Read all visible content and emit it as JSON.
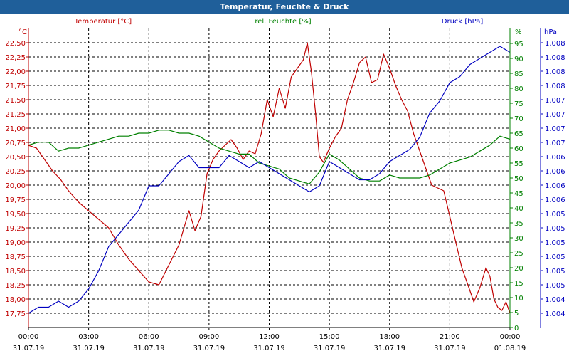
{
  "window": {
    "title": "Temperatur, Feuchte & Druck"
  },
  "colors": {
    "temperature": "#c00000",
    "humidity": "#008000",
    "pressure": "#0000c0",
    "grid": "#000000",
    "titlebar": "#1f5f9a"
  },
  "chart_data": {
    "type": "line",
    "title": "Temperatur, Feuchte & Druck",
    "grid": true,
    "x_ticks": [
      {
        "time": "00:00",
        "date": "31.07.19"
      },
      {
        "time": "03:00",
        "date": "31.07.19"
      },
      {
        "time": "06:00",
        "date": "31.07.19"
      },
      {
        "time": "09:00",
        "date": "31.07.19"
      },
      {
        "time": "12:00",
        "date": "31.07.19"
      },
      {
        "time": "15:00",
        "date": "31.07.19"
      },
      {
        "time": "18:00",
        "date": "31.07.19"
      },
      {
        "time": "21:00",
        "date": "31.07.19"
      },
      {
        "time": "00:00",
        "date": "01.08.19"
      }
    ],
    "x_range_hours": [
      0,
      24
    ],
    "axes": {
      "temperature": {
        "label": "Temperatur [°C]",
        "unit": "°C",
        "range": [
          17.5,
          22.75
        ],
        "ticks": [
          "17,75",
          "18,00",
          "18,25",
          "18,50",
          "18,75",
          "19,00",
          "19,25",
          "19,50",
          "19,75",
          "20,00",
          "20,25",
          "20,50",
          "20,75",
          "21,00",
          "21,25",
          "21,50",
          "21,75",
          "22,00",
          "22,25",
          "22,50"
        ]
      },
      "humidity": {
        "label": "rel. Feuchte [%]",
        "unit": "%",
        "range": [
          0,
          100
        ],
        "ticks": [
          "0",
          "5",
          "10",
          "15",
          "20",
          "25",
          "30",
          "35",
          "40",
          "45",
          "50",
          "55",
          "60",
          "65",
          "70",
          "75",
          "80",
          "85",
          "90",
          "95"
        ]
      },
      "pressure": {
        "label": "Druck [hPa]",
        "unit": "hPa",
        "ticks": [
          "1.004",
          "1.004",
          "1.005",
          "1.005",
          "1.005",
          "1.005",
          "1.005",
          "1.005",
          "1.006",
          "1.006",
          "1.006",
          "1.006",
          "1.007",
          "1.007",
          "1.007",
          "1.007",
          "1.008",
          "1.008",
          "1.008",
          "1.008"
        ]
      }
    },
    "series": [
      {
        "name": "Temperatur [°C]",
        "axis": "temperature",
        "x": [
          0,
          0.4,
          0.8,
          1.2,
          1.6,
          2.0,
          2.5,
          3.0,
          3.5,
          4.0,
          4.5,
          5.0,
          5.5,
          6.0,
          6.5,
          7.0,
          7.5,
          8.0,
          8.3,
          8.6,
          8.9,
          9.2,
          9.5,
          9.8,
          10.1,
          10.4,
          10.7,
          11.0,
          11.3,
          11.6,
          11.9,
          12.2,
          12.5,
          12.8,
          13.1,
          13.4,
          13.7,
          13.9,
          14.1,
          14.3,
          14.5,
          14.7,
          15.0,
          15.3,
          15.6,
          15.9,
          16.2,
          16.5,
          16.8,
          17.1,
          17.4,
          17.7,
          18.0,
          18.3,
          18.6,
          18.9,
          19.2,
          19.5,
          19.8,
          20.1,
          20.4,
          20.7,
          21.0,
          21.3,
          21.6,
          21.9,
          22.2,
          22.5,
          22.8,
          23.0,
          23.2,
          23.4,
          23.6,
          23.8,
          24.0
        ],
        "y": [
          20.7,
          20.65,
          20.45,
          20.25,
          20.1,
          19.9,
          19.7,
          19.55,
          19.4,
          19.25,
          18.95,
          18.7,
          18.5,
          18.3,
          18.25,
          18.6,
          18.95,
          19.55,
          19.2,
          19.45,
          20.2,
          20.45,
          20.6,
          20.7,
          20.8,
          20.65,
          20.45,
          20.6,
          20.55,
          20.9,
          21.5,
          21.2,
          21.7,
          21.35,
          21.9,
          22.05,
          22.2,
          22.5,
          22.0,
          21.3,
          20.5,
          20.4,
          20.65,
          20.85,
          21.0,
          21.5,
          21.8,
          22.15,
          22.25,
          21.8,
          21.85,
          22.3,
          22.05,
          21.75,
          21.5,
          21.3,
          20.9,
          20.6,
          20.3,
          20.0,
          19.95,
          19.9,
          19.45,
          19.0,
          18.55,
          18.25,
          17.95,
          18.2,
          18.55,
          18.4,
          18.0,
          17.85,
          17.8,
          17.95,
          17.75
        ]
      },
      {
        "name": "rel. Feuchte [%]",
        "axis": "humidity",
        "x": [
          0,
          0.5,
          1.0,
          1.5,
          2.0,
          2.5,
          3.0,
          3.5,
          4.0,
          4.5,
          5.0,
          5.5,
          6.0,
          6.5,
          7.0,
          7.5,
          8.0,
          8.5,
          9.0,
          9.5,
          10.0,
          10.5,
          11.0,
          11.5,
          12.0,
          12.5,
          13.0,
          13.5,
          14.0,
          14.5,
          15.0,
          15.5,
          16.0,
          16.5,
          17.0,
          17.5,
          18.0,
          18.5,
          19.0,
          19.5,
          20.0,
          20.5,
          21.0,
          21.5,
          22.0,
          22.5,
          23.0,
          23.5,
          24.0
        ],
        "y": [
          61,
          62,
          62,
          59,
          60,
          60,
          61,
          62,
          63,
          64,
          64,
          65,
          65,
          66,
          66,
          65,
          65,
          64,
          62,
          60,
          59,
          58,
          58,
          55,
          54,
          53,
          50,
          49,
          48,
          52,
          58,
          56,
          53,
          50,
          49,
          49,
          51,
          50,
          50,
          50,
          51,
          53,
          55,
          56,
          57,
          59,
          61,
          64,
          63
        ]
      },
      {
        "name": "Druck [hPa]",
        "axis": "pressure",
        "x": [
          0,
          0.5,
          1.0,
          1.5,
          2.0,
          2.5,
          3.0,
          3.5,
          4.0,
          4.5,
          5.0,
          5.5,
          6.0,
          6.5,
          7.0,
          7.5,
          8.0,
          8.5,
          9.0,
          9.5,
          10.0,
          10.5,
          11.0,
          11.5,
          12.0,
          12.5,
          13.0,
          13.5,
          14.0,
          14.5,
          15.0,
          15.5,
          16.0,
          16.5,
          17.0,
          17.5,
          18.0,
          18.5,
          19.0,
          19.5,
          20.0,
          20.5,
          21.0,
          21.5,
          22.0,
          22.5,
          23.0,
          23.5,
          24.0
        ],
        "y": [
          1.0039,
          1.004,
          1.004,
          1.0041,
          1.004,
          1.0041,
          1.0043,
          1.0046,
          1.005,
          1.0052,
          1.0054,
          1.0056,
          1.006,
          1.006,
          1.0062,
          1.0064,
          1.0065,
          1.0063,
          1.0063,
          1.0063,
          1.0065,
          1.0064,
          1.0063,
          1.0064,
          1.0063,
          1.0062,
          1.0061,
          1.006,
          1.0059,
          1.006,
          1.0064,
          1.0063,
          1.0062,
          1.0061,
          1.0061,
          1.0062,
          1.0064,
          1.0065,
          1.0066,
          1.0068,
          1.0072,
          1.0074,
          1.0077,
          1.0078,
          1.008,
          1.0081,
          1.0082,
          1.0083,
          1.0082
        ]
      }
    ]
  }
}
